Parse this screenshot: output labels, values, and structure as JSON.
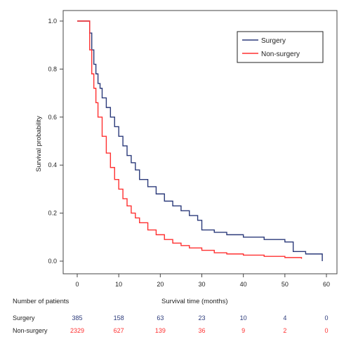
{
  "colors": {
    "surgery": "#2b3a7a",
    "non_surgery": "#ff3030",
    "axis": "#444444"
  },
  "chart_data": {
    "type": "line",
    "step": true,
    "xlabel": "Survival time (months)",
    "ylabel": "Survival probability",
    "xlim": [
      0,
      60
    ],
    "ylim": [
      0,
      1
    ],
    "x_ticks": [
      0,
      10,
      20,
      30,
      40,
      50,
      60
    ],
    "y_ticks": [
      "0.0",
      "0.2",
      "0.4",
      "0.6",
      "0.8",
      "1.0"
    ],
    "y_tick_values": [
      0,
      0.2,
      0.4,
      0.6,
      0.8,
      1.0
    ],
    "grid": false,
    "legend_position": "top-right",
    "series": [
      {
        "name": "Surgery",
        "color": "#2b3a7a",
        "x": [
          0,
          2.5,
          3,
          3.5,
          4,
          4.5,
          5,
          5.5,
          6,
          7,
          8,
          9,
          10,
          11,
          12,
          13,
          14,
          15,
          17,
          19,
          21,
          23,
          25,
          27,
          29,
          30,
          33,
          36,
          40,
          45,
          50,
          52,
          55,
          59
        ],
        "y": [
          1.0,
          1.0,
          0.95,
          0.88,
          0.82,
          0.78,
          0.74,
          0.72,
          0.68,
          0.64,
          0.6,
          0.56,
          0.52,
          0.48,
          0.44,
          0.41,
          0.38,
          0.34,
          0.31,
          0.28,
          0.25,
          0.23,
          0.21,
          0.19,
          0.17,
          0.13,
          0.12,
          0.11,
          0.1,
          0.09,
          0.08,
          0.04,
          0.03,
          0.0
        ]
      },
      {
        "name": "Non-surgery",
        "color": "#ff3030",
        "x": [
          0,
          2.5,
          3,
          3.5,
          4,
          4.5,
          5,
          6,
          7,
          8,
          9,
          10,
          11,
          12,
          13,
          14,
          15,
          17,
          19,
          21,
          23,
          25,
          27,
          30,
          33,
          36,
          40,
          45,
          50,
          54
        ],
        "y": [
          1.0,
          1.0,
          0.88,
          0.78,
          0.72,
          0.66,
          0.6,
          0.52,
          0.45,
          0.39,
          0.34,
          0.3,
          0.26,
          0.23,
          0.2,
          0.18,
          0.16,
          0.13,
          0.11,
          0.09,
          0.075,
          0.065,
          0.055,
          0.045,
          0.035,
          0.03,
          0.025,
          0.02,
          0.015,
          0.01
        ]
      }
    ],
    "risk_table": {
      "title": "Number of patients",
      "times": [
        0,
        10,
        20,
        30,
        40,
        50,
        60
      ],
      "rows": [
        {
          "label": "Surgery",
          "color": "#2b3a7a",
          "values": [
            "385",
            "158",
            "63",
            "23",
            "10",
            "4",
            "0"
          ]
        },
        {
          "label": "Non-surgery",
          "color": "#ff3030",
          "values": [
            "2329",
            "627",
            "139",
            "36",
            "9",
            "2",
            "0"
          ]
        }
      ]
    }
  }
}
